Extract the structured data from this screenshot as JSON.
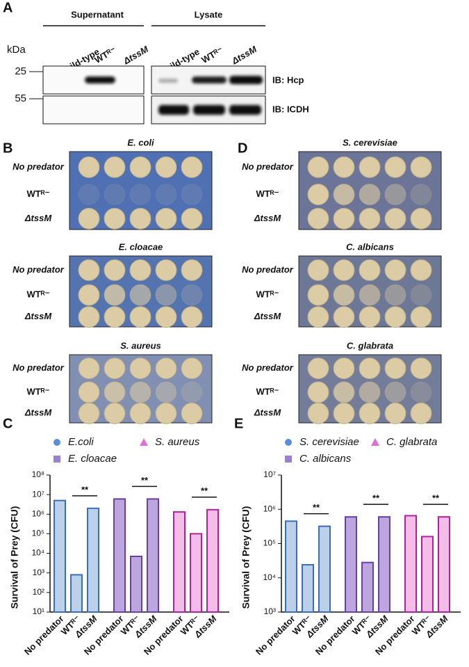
{
  "panels": {
    "A": {
      "letter": "A",
      "groups": [
        "Supernatant",
        "Lysate"
      ],
      "unit": "kDa",
      "lanes": [
        "wild-type",
        "WTᴿ⁻",
        "ΔtssM"
      ],
      "markers": [
        25,
        55
      ],
      "blots": [
        "IB: Hcp",
        "IB: ICDH"
      ]
    },
    "B": {
      "letter": "B",
      "plates": [
        "E. coli",
        "E. cloacae",
        "S. aureus"
      ],
      "rows": [
        "No predator",
        "WTᴿ⁻",
        "ΔtssM"
      ]
    },
    "D": {
      "letter": "D",
      "plates": [
        "S. cerevisiae",
        "C. albicans",
        "C. glabrata"
      ],
      "rows": [
        "No predator",
        "WTᴿ⁻",
        "ΔtssM"
      ]
    }
  },
  "chart_data": [
    {
      "type": "bar",
      "label": "C",
      "ylabel": "Survival of Prey (CFU)",
      "yscale": "log",
      "categories": [
        "No predator",
        "WTᴿ⁻",
        "ΔtssM"
      ],
      "series": [
        {
          "name": "E.coli",
          "marker": "circle",
          "color": "#3a6fb5",
          "fill": "#bcd0ea",
          "values": [
            5000000,
            800,
            2000000
          ]
        },
        {
          "name": "E. cloacae",
          "marker": "square",
          "color": "#6a3fa0",
          "fill": "#bba6dd",
          "values": [
            6000000,
            7000,
            6000000
          ]
        },
        {
          "name": "S. aureus",
          "marker": "triangle",
          "color": "#b0209a",
          "fill": "#f4bde8",
          "values": [
            1300000,
            100000,
            1700000
          ]
        }
      ],
      "ylim": [
        10,
        100000000
      ],
      "yticks": [
        {
          "value": 10,
          "label": "10¹"
        },
        {
          "value": 100,
          "label": "10²"
        },
        {
          "value": 1000,
          "label": "10³"
        },
        {
          "value": 10000,
          "label": "10⁴"
        },
        {
          "value": 100000,
          "label": "10⁵"
        },
        {
          "value": 1000000,
          "label": "10⁶"
        },
        {
          "value": 10000000,
          "label": "10⁷"
        },
        {
          "value": 100000000,
          "label": "10⁸"
        }
      ],
      "annotations": [
        "**",
        "**",
        "**"
      ]
    },
    {
      "type": "bar",
      "label": "E",
      "ylabel": "Survival of Prey (CFU)",
      "yscale": "log",
      "categories": [
        "No predator",
        "WTᴿ⁻",
        "ΔtssM"
      ],
      "series": [
        {
          "name": "S. cerevisiae",
          "marker": "circle",
          "color": "#3a6fb5",
          "fill": "#bcd0ea",
          "values": [
            450000,
            24000,
            320000
          ]
        },
        {
          "name": "C. albicans",
          "marker": "square",
          "color": "#6a3fa0",
          "fill": "#bba6dd",
          "values": [
            600000,
            28000,
            600000
          ]
        },
        {
          "name": "C. glabrata",
          "marker": "triangle",
          "color": "#b0209a",
          "fill": "#f4bde8",
          "values": [
            650000,
            160000,
            600000
          ]
        }
      ],
      "ylim": [
        1000,
        10000000
      ],
      "yticks": [
        {
          "value": 1000,
          "label": "10³"
        },
        {
          "value": 10000,
          "label": "10⁴"
        },
        {
          "value": 100000,
          "label": "10⁵"
        },
        {
          "value": 1000000,
          "label": "10⁶"
        },
        {
          "value": 10000000,
          "label": "10⁷"
        }
      ],
      "annotations": [
        "**",
        "**",
        "**"
      ]
    }
  ]
}
